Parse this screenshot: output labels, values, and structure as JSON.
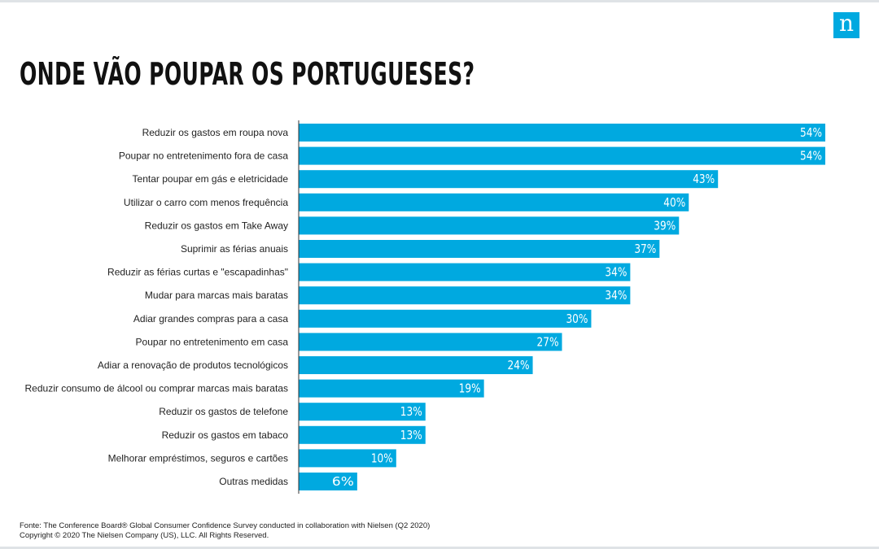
{
  "header": {
    "title": "ONDE VÃO POUPAR OS PORTUGUESES?",
    "logo_letter": "n",
    "logo_icon": "nielsen-logo-icon"
  },
  "chart_data": {
    "type": "bar",
    "orientation": "horizontal",
    "title": "ONDE VÃO POUPAR OS PORTUGUESES?",
    "categories": [
      "Reduzir os gastos em roupa nova",
      "Poupar no entretenimento fora de casa",
      "Tentar poupar em gás e eletricidade",
      "Utilizar o carro com menos frequência",
      "Reduzir os gastos em Take Away",
      "Suprimir as férias anuais",
      "Reduzir as férias curtas e \"escapadinhas\"",
      "Mudar para marcas mais baratas",
      "Adiar grandes compras para a casa",
      "Poupar no entretenimento em casa",
      "Adiar a renovação de produtos tecnológicos",
      "Reduzir consumo de álcool ou comprar marcas mais baratas",
      "Reduzir os gastos de telefone",
      "Reduzir os gastos em tabaco",
      "Melhorar empréstimos, seguros e cartões",
      "Outras medidas"
    ],
    "values": [
      54,
      54,
      43,
      40,
      39,
      37,
      34,
      34,
      30,
      27,
      24,
      19,
      13,
      13,
      10,
      6
    ],
    "value_suffix": "%",
    "xlim": [
      0,
      54
    ],
    "bar_color": "#00a9e0",
    "axis_color": "#333333",
    "grid": false,
    "legend": "none"
  },
  "footer": {
    "source": "Fonte:  The Conference Board® Global Consumer Confidence Survey conducted in collaboration with Nielsen (Q2 2020)",
    "copyright": "Copyright © 2020 The Nielsen Company (US), LLC. All Rights Reserved."
  }
}
